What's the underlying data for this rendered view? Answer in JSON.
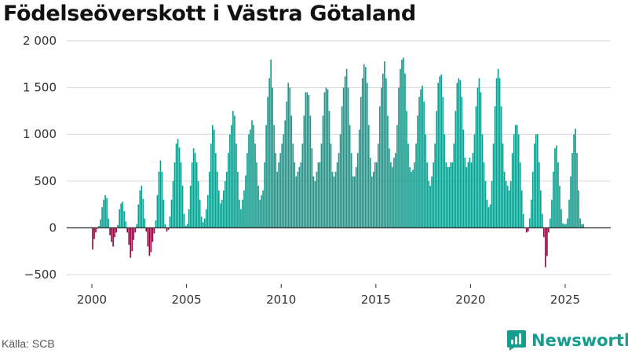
{
  "chart_data": {
    "type": "bar",
    "title": "Födelseöverskott i Västra Götaland",
    "xlabel": "",
    "ylabel": "",
    "ylim": [
      -600,
      2000
    ],
    "xlim": [
      2000,
      2026
    ],
    "y_ticks": [
      -500,
      0,
      500,
      1000,
      1500,
      2000
    ],
    "y_tick_labels": [
      "−500",
      "0",
      "500",
      "1 000",
      "1 500",
      "2 000"
    ],
    "x_ticks": [
      2000,
      2005,
      2010,
      2015,
      2020,
      2025
    ],
    "x_tick_labels": [
      "2000",
      "2005",
      "2010",
      "2015",
      "2020",
      "2025"
    ],
    "grid": true,
    "colors": {
      "positive": "#159d8f",
      "negative": "#8e0b42"
    },
    "categories": [
      "2000-01",
      "2000-02",
      "2000-03",
      "2000-04",
      "2000-05",
      "2000-06",
      "2000-07",
      "2000-08",
      "2000-09",
      "2000-10",
      "2000-11",
      "2000-12",
      "2001-01",
      "2001-02",
      "2001-03",
      "2001-04",
      "2001-05",
      "2001-06",
      "2001-07",
      "2001-08",
      "2001-09",
      "2001-10",
      "2001-11",
      "2001-12",
      "2002-01",
      "2002-02",
      "2002-03",
      "2002-04",
      "2002-05",
      "2002-06",
      "2002-07",
      "2002-08",
      "2002-09",
      "2002-10",
      "2002-11",
      "2002-12",
      "2003-01",
      "2003-02",
      "2003-03",
      "2003-04",
      "2003-05",
      "2003-06",
      "2003-07",
      "2003-08",
      "2003-09",
      "2003-10",
      "2003-11",
      "2003-12",
      "2004-01",
      "2004-02",
      "2004-03",
      "2004-04",
      "2004-05",
      "2004-06",
      "2004-07",
      "2004-08",
      "2004-09",
      "2004-10",
      "2004-11",
      "2004-12",
      "2005-01",
      "2005-02",
      "2005-03",
      "2005-04",
      "2005-05",
      "2005-06",
      "2005-07",
      "2005-08",
      "2005-09",
      "2005-10",
      "2005-11",
      "2005-12",
      "2006-01",
      "2006-02",
      "2006-03",
      "2006-04",
      "2006-05",
      "2006-06",
      "2006-07",
      "2006-08",
      "2006-09",
      "2006-10",
      "2006-11",
      "2006-12",
      "2007-01",
      "2007-02",
      "2007-03",
      "2007-04",
      "2007-05",
      "2007-06",
      "2007-07",
      "2007-08",
      "2007-09",
      "2007-10",
      "2007-11",
      "2007-12",
      "2008-01",
      "2008-02",
      "2008-03",
      "2008-04",
      "2008-05",
      "2008-06",
      "2008-07",
      "2008-08",
      "2008-09",
      "2008-10",
      "2008-11",
      "2008-12",
      "2009-01",
      "2009-02",
      "2009-03",
      "2009-04",
      "2009-05",
      "2009-06",
      "2009-07",
      "2009-08",
      "2009-09",
      "2009-10",
      "2009-11",
      "2009-12",
      "2010-01",
      "2010-02",
      "2010-03",
      "2010-04",
      "2010-05",
      "2010-06",
      "2010-07",
      "2010-08",
      "2010-09",
      "2010-10",
      "2010-11",
      "2010-12",
      "2011-01",
      "2011-02",
      "2011-03",
      "2011-04",
      "2011-05",
      "2011-06",
      "2011-07",
      "2011-08",
      "2011-09",
      "2011-10",
      "2011-11",
      "2011-12",
      "2012-01",
      "2012-02",
      "2012-03",
      "2012-04",
      "2012-05",
      "2012-06",
      "2012-07",
      "2012-08",
      "2012-09",
      "2012-10",
      "2012-11",
      "2012-12",
      "2013-01",
      "2013-02",
      "2013-03",
      "2013-04",
      "2013-05",
      "2013-06",
      "2013-07",
      "2013-08",
      "2013-09",
      "2013-10",
      "2013-11",
      "2013-12",
      "2014-01",
      "2014-02",
      "2014-03",
      "2014-04",
      "2014-05",
      "2014-06",
      "2014-07",
      "2014-08",
      "2014-09",
      "2014-10",
      "2014-11",
      "2014-12",
      "2015-01",
      "2015-02",
      "2015-03",
      "2015-04",
      "2015-05",
      "2015-06",
      "2015-07",
      "2015-08",
      "2015-09",
      "2015-10",
      "2015-11",
      "2015-12",
      "2016-01",
      "2016-02",
      "2016-03",
      "2016-04",
      "2016-05",
      "2016-06",
      "2016-07",
      "2016-08",
      "2016-09",
      "2016-10",
      "2016-11",
      "2016-12",
      "2017-01",
      "2017-02",
      "2017-03",
      "2017-04",
      "2017-05",
      "2017-06",
      "2017-07",
      "2017-08",
      "2017-09",
      "2017-10",
      "2017-11",
      "2017-12",
      "2018-01",
      "2018-02",
      "2018-03",
      "2018-04",
      "2018-05",
      "2018-06",
      "2018-07",
      "2018-08",
      "2018-09",
      "2018-10",
      "2018-11",
      "2018-12",
      "2019-01",
      "2019-02",
      "2019-03",
      "2019-04",
      "2019-05",
      "2019-06",
      "2019-07",
      "2019-08",
      "2019-09",
      "2019-10",
      "2019-11",
      "2019-12",
      "2020-01",
      "2020-02",
      "2020-03",
      "2020-04",
      "2020-05",
      "2020-06",
      "2020-07",
      "2020-08",
      "2020-09",
      "2020-10",
      "2020-11",
      "2020-12",
      "2021-01",
      "2021-02",
      "2021-03",
      "2021-04",
      "2021-05",
      "2021-06",
      "2021-07",
      "2021-08",
      "2021-09",
      "2021-10",
      "2021-11",
      "2021-12",
      "2022-01",
      "2022-02",
      "2022-03",
      "2022-04",
      "2022-05",
      "2022-06",
      "2022-07",
      "2022-08",
      "2022-09",
      "2022-10",
      "2022-11",
      "2022-12",
      "2023-01",
      "2023-02",
      "2023-03",
      "2023-04",
      "2023-05",
      "2023-06",
      "2023-07",
      "2023-08",
      "2023-09",
      "2023-10",
      "2023-11",
      "2023-12",
      "2024-01",
      "2024-02",
      "2024-03",
      "2024-04",
      "2024-05",
      "2024-06",
      "2024-07",
      "2024-08",
      "2024-09",
      "2024-10",
      "2024-11",
      "2024-12",
      "2025-01",
      "2025-02",
      "2025-03",
      "2025-04",
      "2025-05",
      "2025-06",
      "2025-07",
      "2025-08",
      "2025-09",
      "2025-10",
      "2025-11",
      "2025-12"
    ],
    "values": [
      -230,
      -120,
      -50,
      -10,
      20,
      90,
      220,
      300,
      350,
      320,
      100,
      -80,
      -150,
      -200,
      -100,
      -50,
      30,
      200,
      260,
      280,
      180,
      70,
      -50,
      -180,
      -320,
      -250,
      -130,
      -50,
      40,
      250,
      400,
      450,
      310,
      100,
      -40,
      -200,
      -300,
      -260,
      -150,
      -60,
      80,
      350,
      600,
      720,
      600,
      300,
      40,
      -40,
      -20,
      120,
      300,
      500,
      700,
      900,
      950,
      860,
      700,
      450,
      150,
      20,
      40,
      200,
      450,
      700,
      850,
      800,
      700,
      500,
      300,
      120,
      60,
      100,
      200,
      350,
      600,
      900,
      1100,
      1050,
      800,
      600,
      400,
      260,
      300,
      400,
      500,
      600,
      800,
      1000,
      1100,
      1250,
      1200,
      900,
      600,
      300,
      200,
      300,
      400,
      560,
      800,
      1000,
      1050,
      1150,
      1100,
      900,
      700,
      450,
      300,
      350,
      400,
      700,
      1100,
      1400,
      1600,
      1800,
      1500,
      1100,
      800,
      600,
      700,
      800,
      900,
      1000,
      1150,
      1350,
      1550,
      1500,
      1200,
      900,
      700,
      550,
      600,
      650,
      700,
      900,
      1200,
      1450,
      1450,
      1420,
      1200,
      850,
      550,
      500,
      600,
      700,
      700,
      900,
      1200,
      1450,
      1500,
      1480,
      1250,
      900,
      600,
      550,
      600,
      700,
      800,
      1000,
      1300,
      1500,
      1620,
      1700,
      1500,
      1100,
      800,
      550,
      550,
      650,
      800,
      1050,
      1400,
      1600,
      1750,
      1720,
      1550,
      1100,
      750,
      550,
      600,
      700,
      700,
      900,
      1300,
      1500,
      1650,
      1780,
      1600,
      1200,
      850,
      700,
      650,
      750,
      800,
      1100,
      1500,
      1700,
      1800,
      1820,
      1650,
      1250,
      900,
      650,
      600,
      620,
      700,
      900,
      1200,
      1400,
      1480,
      1520,
      1350,
      1000,
      700,
      500,
      450,
      550,
      700,
      900,
      1250,
      1550,
      1620,
      1640,
      1400,
      1000,
      700,
      650,
      650,
      700,
      700,
      900,
      1250,
      1550,
      1600,
      1580,
      1400,
      1050,
      750,
      650,
      700,
      750,
      700,
      800,
      1000,
      1300,
      1500,
      1600,
      1450,
      1000,
      700,
      500,
      300,
      220,
      250,
      500,
      900,
      1300,
      1600,
      1700,
      1600,
      1300,
      900,
      600,
      500,
      450,
      400,
      500,
      800,
      1000,
      1100,
      1100,
      1000,
      700,
      400,
      150,
      0,
      -50,
      -40,
      100,
      300,
      600,
      900,
      1000,
      1000,
      700,
      400,
      150,
      -100,
      -420,
      -300,
      -50,
      100,
      300,
      600,
      850,
      880,
      700,
      450,
      200,
      50,
      40,
      40,
      100,
      300,
      550,
      800,
      1000,
      1060,
      800,
      400,
      100,
      40,
      40
    ]
  },
  "footer": {
    "source": "Källa: SCB",
    "brand": "Newsworthy",
    "brand_icon": "chart-speech-bubble-icon"
  }
}
